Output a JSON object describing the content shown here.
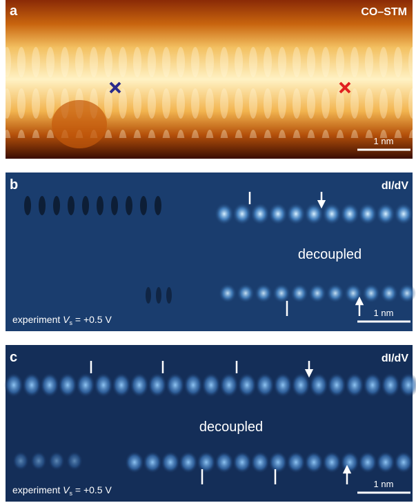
{
  "panels": [
    {
      "letter": "a",
      "label": "CO–STM",
      "scale_bar": "1 nm"
    },
    {
      "letter": "b",
      "label": "dI/dV",
      "annotation": "decoupled",
      "condition": [
        "experiment ",
        "V",
        "s",
        " = +0.5 V"
      ],
      "scale_bar": "1 nm"
    },
    {
      "letter": "c",
      "label": "dI/dV",
      "annotation": "decoupled",
      "condition": [
        "experiment ",
        "V",
        "s",
        " = +0.5 V"
      ],
      "scale_bar": "1 nm"
    }
  ]
}
